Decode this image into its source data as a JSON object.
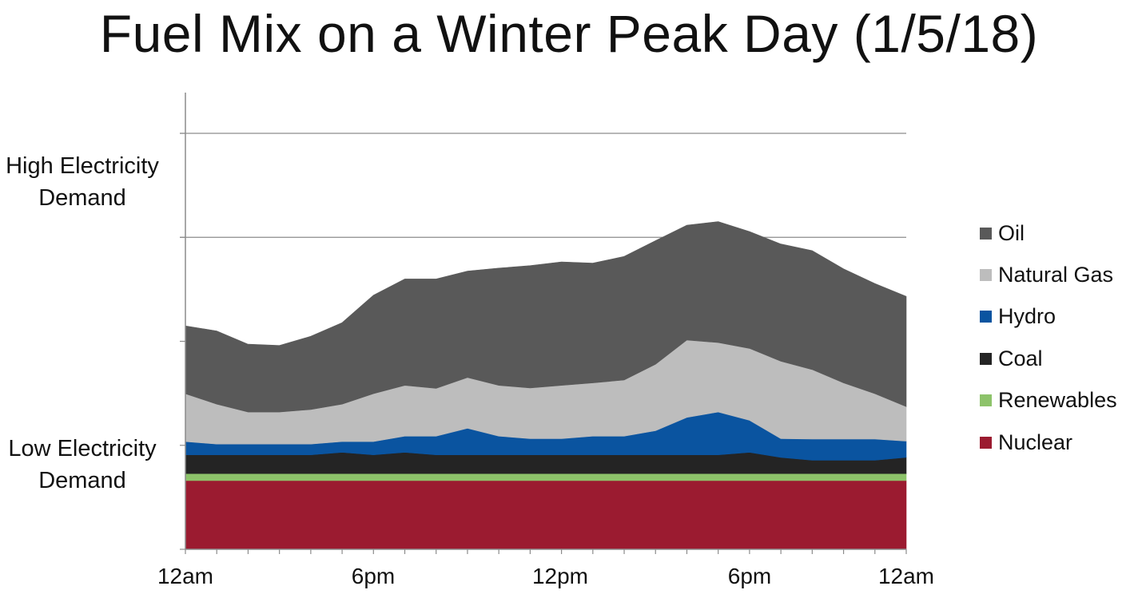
{
  "title": "Fuel Mix on a Winter Peak Day (1/5/18)",
  "y_labels": {
    "high": [
      "High Electricity",
      "Demand"
    ],
    "low": [
      "Low Electricity",
      "Demand"
    ]
  },
  "chart_data": {
    "type": "area",
    "stacked": true,
    "title": "Fuel Mix on a Winter Peak Day (1/5/18)",
    "xlabel": "",
    "ylabel": "",
    "x_tick_labels": [
      "12am",
      "6pm",
      "12pm",
      "6pm",
      "12am"
    ],
    "y_axis_labels": [
      "High Electricity Demand",
      "Low Electricity Demand"
    ],
    "y_unit_note": "relative units (0 = axis bottom, 100 = top gridline)",
    "ylim": [
      0,
      120
    ],
    "y_gridlines": [
      100,
      75
    ],
    "num_points": 24,
    "legend_position": "right",
    "series": [
      {
        "name": "Nuclear",
        "color": "#9b1b30",
        "values": [
          16.5,
          16.5,
          16.5,
          16.5,
          16.5,
          16.5,
          16.5,
          16.5,
          16.5,
          16.5,
          16.5,
          16.5,
          16.5,
          16.5,
          16.5,
          16.5,
          16.5,
          16.5,
          16.5,
          16.5,
          16.5,
          16.5,
          16.5,
          16.5
        ]
      },
      {
        "name": "Renewables",
        "color": "#8dc36a",
        "values": [
          1.7,
          1.7,
          1.7,
          1.7,
          1.7,
          1.7,
          1.7,
          1.7,
          1.7,
          1.7,
          1.7,
          1.7,
          1.7,
          1.7,
          1.7,
          1.7,
          1.7,
          1.7,
          1.7,
          1.7,
          1.7,
          1.7,
          1.7,
          1.7
        ]
      },
      {
        "name": "Coal",
        "color": "#242424",
        "values": [
          4.5,
          4.5,
          4.5,
          4.5,
          4.5,
          5.1,
          4.5,
          5.1,
          4.5,
          4.5,
          4.5,
          4.5,
          4.5,
          4.5,
          4.5,
          4.5,
          4.5,
          4.5,
          5.1,
          3.9,
          3.2,
          3.2,
          3.2,
          3.9
        ]
      },
      {
        "name": "Hydro",
        "color": "#0a54a0",
        "values": [
          3.2,
          2.6,
          2.6,
          2.6,
          2.6,
          2.6,
          3.2,
          3.9,
          4.5,
          6.4,
          4.5,
          3.9,
          3.9,
          4.5,
          4.5,
          5.8,
          9.0,
          10.3,
          7.7,
          4.5,
          5.1,
          5.1,
          5.1,
          3.9
        ]
      },
      {
        "name": "Natural Gas",
        "color": "#bdbdbd",
        "values": [
          11.5,
          9.6,
          7.7,
          7.7,
          8.3,
          9.0,
          11.5,
          12.2,
          11.5,
          12.2,
          12.2,
          12.2,
          12.8,
          12.8,
          13.5,
          16.0,
          18.6,
          16.7,
          17.3,
          18.6,
          16.7,
          13.5,
          10.9,
          8.3
        ]
      },
      {
        "name": "Oil",
        "color": "#595959",
        "values": [
          16.3,
          17.6,
          16.3,
          16.0,
          17.6,
          19.6,
          23.7,
          25.6,
          26.3,
          25.6,
          28.2,
          29.4,
          29.7,
          28.8,
          29.7,
          29.7,
          27.6,
          29.1,
          28.1,
          28.2,
          28.6,
          27.4,
          26.5,
          26.5
        ]
      }
    ]
  },
  "legend": [
    "Oil",
    "Natural Gas",
    "Hydro",
    "Coal",
    "Renewables",
    "Nuclear"
  ]
}
